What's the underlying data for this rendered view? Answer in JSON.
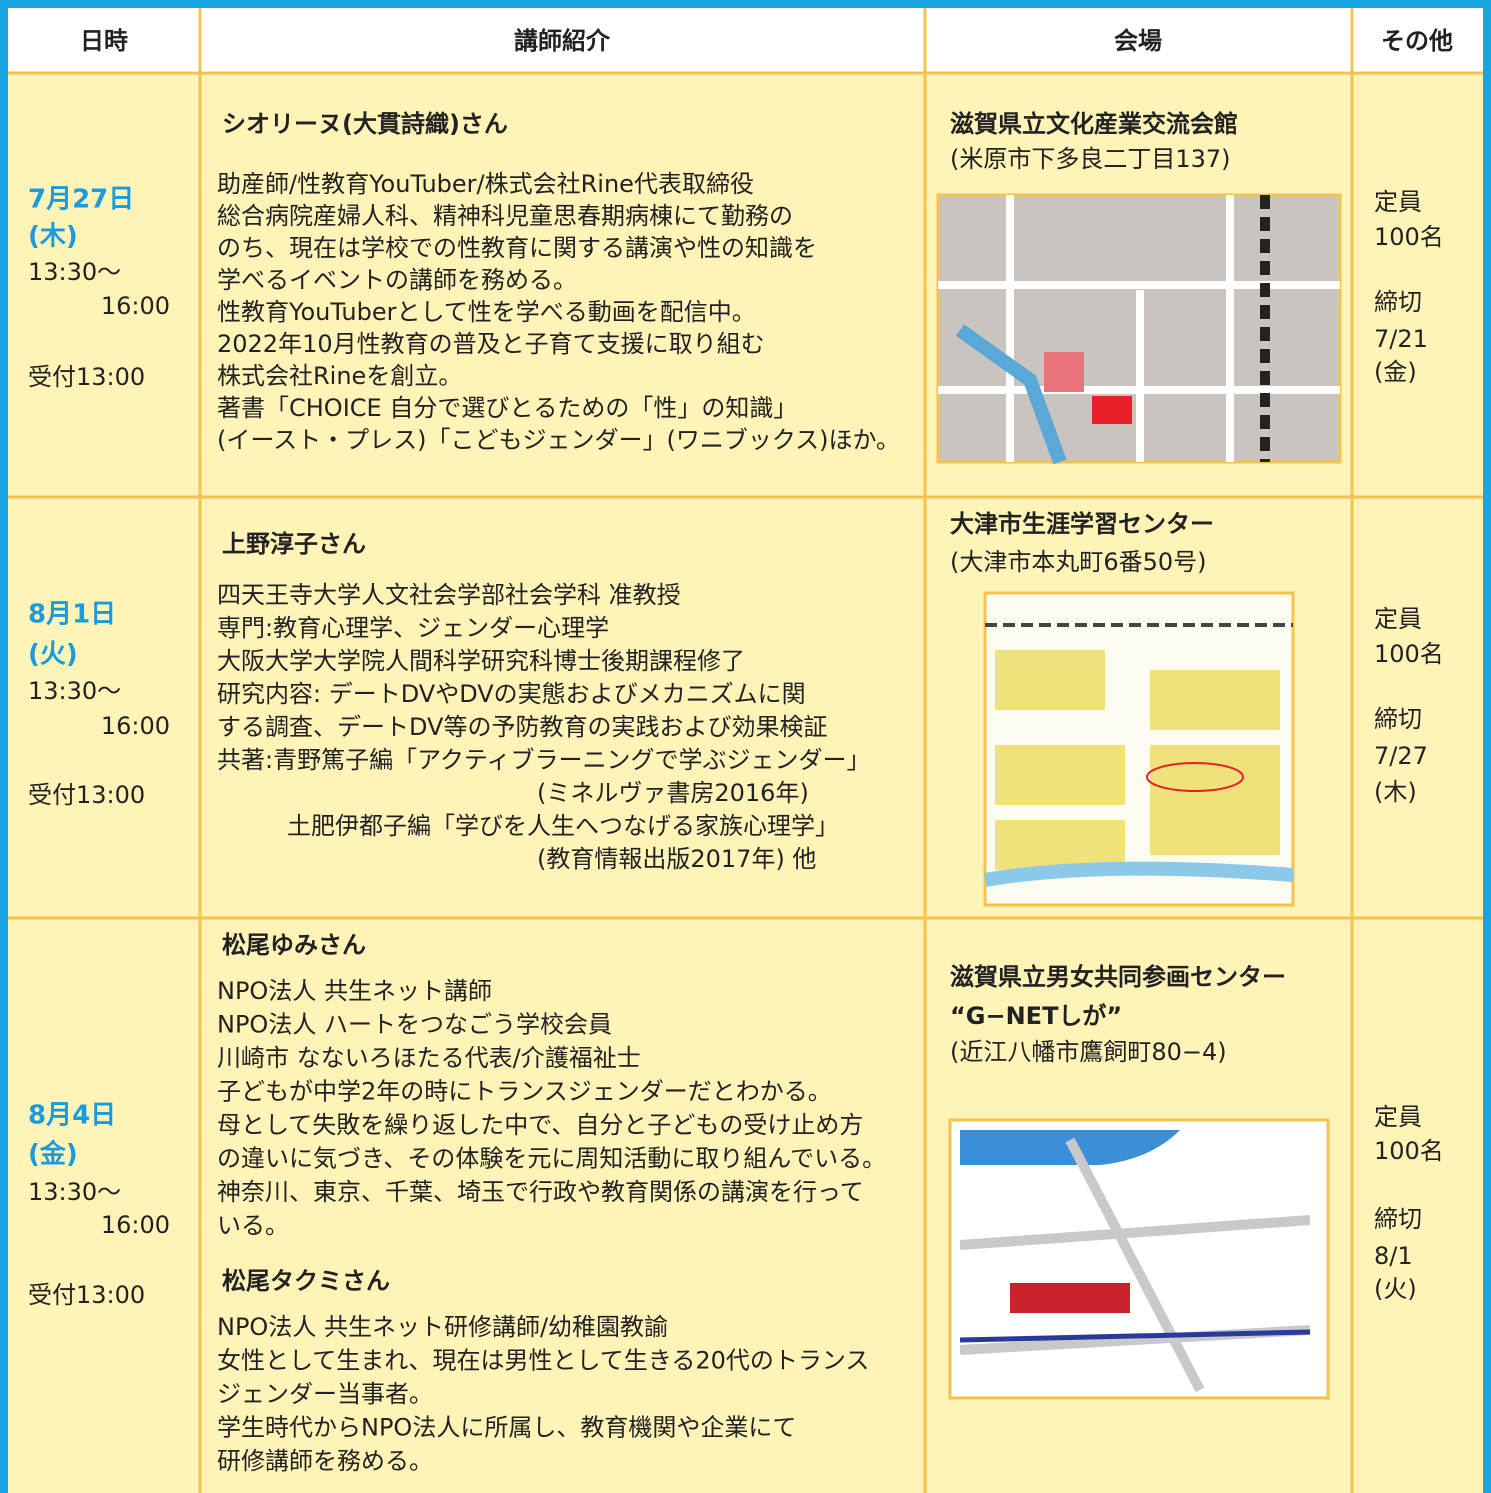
{
  "header": [
    "日時",
    "講師紹介",
    "会場",
    "その他"
  ],
  "rows": [
    {
      "date": "7月27日",
      "weekday": "(木)",
      "time_start": "13:30〜",
      "time_end": "16:00",
      "reception": "受付13:00",
      "speakers": [
        {
          "name": "シオリーヌ(大貫詩織)さん",
          "lines": [
            "助産師/性教育YouTuber/株式会社Rine代表取締役",
            "総合病院産婦人科、精神科児童思春期病棟にて勤務の",
            "のち、現在は学校での性教育に関する講演や性の知識を",
            "学べるイベントの講師を務める。",
            "性教育YouTuberとして性を学べる動画を配信中。",
            "2022年10月性教育の普及と子育て支援に取り組む",
            "株式会社Rineを創立。",
            "著書「CHOICE 自分で選びとるための「性」の知識」",
            "(イースト・プレス)「こどもジェンダー」(ワニブックス)ほか。"
          ]
        }
      ],
      "venue": {
        "name": [
          "滋賀県立文化産業交流会館"
        ],
        "address": "(米原市下多良二丁目137)"
      },
      "capacity_label": "定員",
      "capacity": "100名",
      "deadline_label": "締切",
      "deadline": "7/21",
      "deadline_weekday": "(金)"
    },
    {
      "date": "8月1日",
      "weekday": "(火)",
      "time_start": "13:30〜",
      "time_end": "16:00",
      "reception": "受付13:00",
      "speakers": [
        {
          "name": "上野淳子さん",
          "lines": [
            "四天王寺大学人文社会学部社会学科 准教授",
            "専門:教育心理学、ジェンダー心理学",
            "大阪大学大学院人間科学研究科博士後期課程修了",
            "研究内容: デートDVやDVの実態およびメカニズムに関",
            "する調査、デートDV等の予防教育の実践および効果検証",
            "共著:青野篤子編「アクティブラーニングで学ぶジェンダー」",
            "(ミネルヴァ書房2016年)",
            "土肥伊都子編「学びを人生へつなげる家族心理学」",
            "(教育情報出版2017年) 他"
          ]
        }
      ],
      "venue": {
        "name": [
          "大津市生涯学習センター"
        ],
        "address": "(大津市本丸町6番50号)"
      },
      "capacity_label": "定員",
      "capacity": "100名",
      "deadline_label": "締切",
      "deadline": "7/27",
      "deadline_weekday": "(木)"
    },
    {
      "date": "8月4日",
      "weekday": "(金)",
      "time_start": "13:30〜",
      "time_end": "16:00",
      "reception": "受付13:00",
      "speakers": [
        {
          "name": "松尾ゆみさん",
          "lines": [
            "NPO法人 共生ネット講師",
            "NPO法人 ハートをつなごう学校会員",
            "川崎市 なないろほたる代表/介護福祉士",
            "子どもが中学2年の時にトランスジェンダーだとわかる。",
            "母として失敗を繰り返した中で、自分と子どもの受け止め方",
            "の違いに気づき、その体験を元に周知活動に取り組んでいる。",
            "神奈川、東京、千葉、埼玉で行政や教育関係の講演を行って",
            "いる。"
          ]
        },
        {
          "name": "松尾タクミさん",
          "lines": [
            "NPO法人 共生ネット研修講師/幼稚園教諭",
            "女性として生まれ、現在は男性として生きる20代のトランス",
            "ジェンダー当事者。",
            "学生時代からNPO法人に所属し、教育機関や企業にて",
            "研修講師を務める。"
          ]
        }
      ],
      "venue": {
        "name": [
          "滋賀県立男女共同参画センター",
          "“G−NETしが”"
        ],
        "address": "(近江八幡市鷹飼町80−4)"
      },
      "capacity_label": "定員",
      "capacity": "100名",
      "deadline_label": "締切",
      "deadline": "8/1",
      "deadline_weekday": "(火)"
    }
  ]
}
